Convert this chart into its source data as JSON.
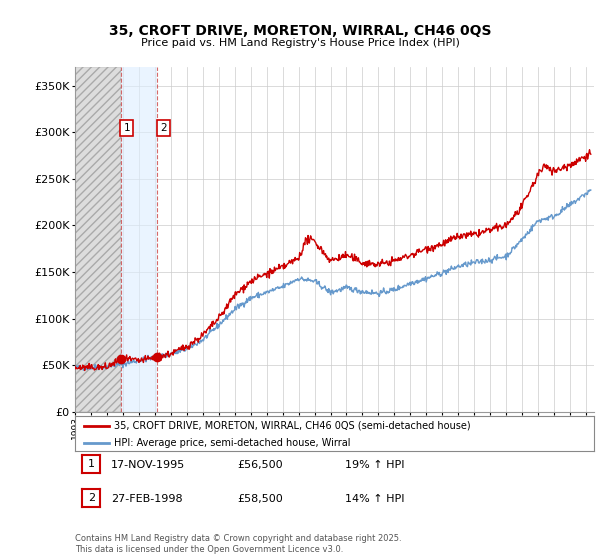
{
  "title": "35, CROFT DRIVE, MORETON, WIRRAL, CH46 0QS",
  "subtitle": "Price paid vs. HM Land Registry's House Price Index (HPI)",
  "ylabel_ticks": [
    "£0",
    "£50K",
    "£100K",
    "£150K",
    "£200K",
    "£250K",
    "£300K",
    "£350K"
  ],
  "ytick_values": [
    0,
    50000,
    100000,
    150000,
    200000,
    250000,
    300000,
    350000
  ],
  "ylim": [
    0,
    370000
  ],
  "xlim_start": 1993.0,
  "xlim_end": 2025.5,
  "sale1_date": 1995.88,
  "sale1_price": 56500,
  "sale1_label": "1",
  "sale2_date": 1998.16,
  "sale2_price": 58500,
  "sale2_label": "2",
  "line1_color": "#cc0000",
  "line2_color": "#6699cc",
  "grid_color": "#cccccc",
  "annotation_box_color": "#cc0000",
  "legend1_text": "35, CROFT DRIVE, MORETON, WIRRAL, CH46 0QS (semi-detached house)",
  "legend2_text": "HPI: Average price, semi-detached house, Wirral",
  "table_row1": [
    "1",
    "17-NOV-1995",
    "£56,500",
    "19% ↑ HPI"
  ],
  "table_row2": [
    "2",
    "27-FEB-1998",
    "£58,500",
    "14% ↑ HPI"
  ],
  "footer": "Contains HM Land Registry data © Crown copyright and database right 2025.\nThis data is licensed under the Open Government Licence v3.0.",
  "bg_color": "#ffffff"
}
